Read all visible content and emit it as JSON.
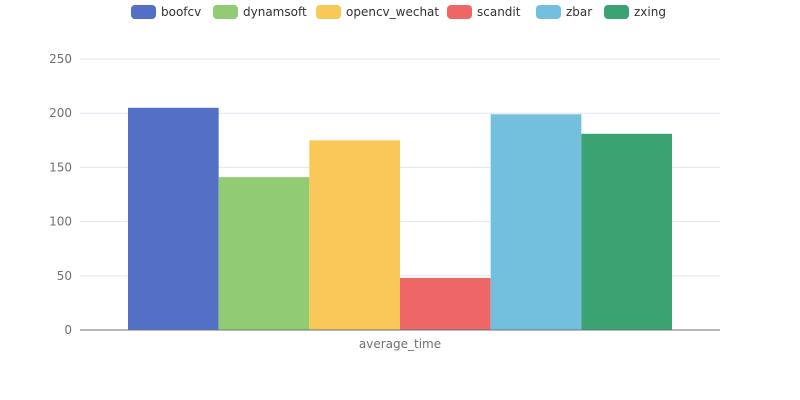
{
  "chart_data": {
    "type": "bar",
    "categories": [
      "average_time"
    ],
    "series": [
      {
        "name": "boofcv",
        "values": [
          205
        ],
        "color": "#5470c6"
      },
      {
        "name": "dynamsoft",
        "values": [
          141
        ],
        "color": "#91cc75"
      },
      {
        "name": "opencv_wechat",
        "values": [
          175
        ],
        "color": "#fac858"
      },
      {
        "name": "scandit",
        "values": [
          48
        ],
        "color": "#ee6666"
      },
      {
        "name": "zbar",
        "values": [
          199
        ],
        "color": "#73c0de"
      },
      {
        "name": "zxing",
        "values": [
          181
        ],
        "color": "#3ba272"
      }
    ],
    "ylim": [
      0,
      250
    ],
    "yticks": [
      0,
      50,
      100,
      150,
      200,
      250
    ],
    "grid": true,
    "legend_position": "top-center",
    "title": "",
    "xlabel": "",
    "ylabel": ""
  }
}
